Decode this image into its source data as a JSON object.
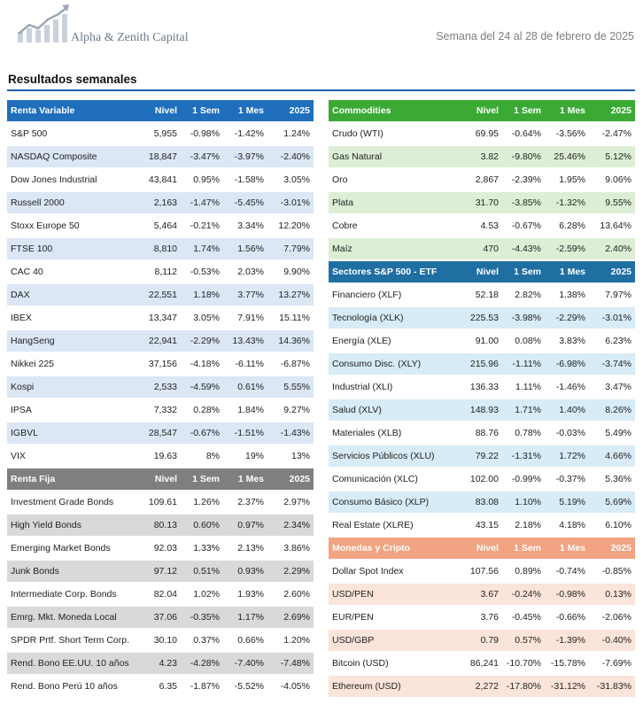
{
  "header": {
    "brand": "Alpha & Zenith Capital",
    "week": "Semana del 24 al 28 de febrero de 2025"
  },
  "section_title": "Resultados semanales",
  "colors": {
    "blue": "#1f6fbd",
    "blue_alt": "#dbe7f5",
    "gray": "#7f7f7f",
    "gray_alt": "#d9d9d9",
    "green": "#3aaa35",
    "green_alt": "#dcefd5",
    "teal": "#1f6fa3",
    "teal_alt": "#d7ecf6",
    "salmon": "#f2a382",
    "salmon_alt": "#fbe4da"
  },
  "left": [
    {
      "key": "renta_variable",
      "header": [
        "Renta Variable",
        "Nivel",
        "1 Sem",
        "1 Mes",
        "2025"
      ],
      "color": "blue",
      "rows": [
        [
          "S&P 500",
          "5,955",
          "-0.98%",
          "-1.42%",
          "1.24%"
        ],
        [
          "NASDAQ Composite",
          "18,847",
          "-3.47%",
          "-3.97%",
          "-2.40%"
        ],
        [
          "Dow Jones Industrial",
          "43,841",
          "0.95%",
          "-1.58%",
          "3.05%"
        ],
        [
          "Russell 2000",
          "2,163",
          "-1.47%",
          "-5.45%",
          "-3.01%"
        ],
        [
          "Stoxx Europe 50",
          "5,464",
          "-0.21%",
          "3.34%",
          "12.20%"
        ],
        [
          "FTSE 100",
          "8,810",
          "1.74%",
          "1.56%",
          "7.79%"
        ],
        [
          "CAC 40",
          "8,112",
          "-0.53%",
          "2.03%",
          "9.90%"
        ],
        [
          "DAX",
          "22,551",
          "1.18%",
          "3.77%",
          "13.27%"
        ],
        [
          "IBEX",
          "13,347",
          "3.05%",
          "7.91%",
          "15.11%"
        ],
        [
          "HangSeng",
          "22,941",
          "-2.29%",
          "13.43%",
          "14.36%"
        ],
        [
          "Nikkei 225",
          "37,156",
          "-4.18%",
          "-6.11%",
          "-6.87%"
        ],
        [
          "Kospi",
          "2,533",
          "-4.59%",
          "0.61%",
          "5.55%"
        ],
        [
          "IPSA",
          "7,332",
          "0.28%",
          "1.84%",
          "9.27%"
        ],
        [
          "IGBVL",
          "28,547",
          "-0.67%",
          "-1.51%",
          "-1.43%"
        ],
        [
          "VIX",
          "19.63",
          "8%",
          "19%",
          "13%"
        ]
      ]
    },
    {
      "key": "renta_fija",
      "header": [
        "Renta Fija",
        "Nivel",
        "1 Sem",
        "1 Mes",
        "2025"
      ],
      "color": "gray",
      "rows": [
        [
          "Investment Grade Bonds",
          "109.61",
          "1.26%",
          "2.37%",
          "2.97%"
        ],
        [
          "High Yield Bonds",
          "80.13",
          "0.60%",
          "0.97%",
          "2.34%"
        ],
        [
          "Emerging Market Bonds",
          "92.03",
          "1.33%",
          "2.13%",
          "3.86%"
        ],
        [
          "Junk Bonds",
          "97.12",
          "0.51%",
          "0.93%",
          "2.29%"
        ],
        [
          "Intermediate Corp. Bonds",
          "82.04",
          "1.02%",
          "1.93%",
          "2.60%"
        ],
        [
          "Emrg. Mkt. Moneda Local",
          "37.06",
          "-0.35%",
          "1.17%",
          "2.69%"
        ],
        [
          "SPDR Prtf. Short Term Corp.",
          "30.10",
          "0.37%",
          "0.66%",
          "1.20%"
        ],
        [
          "Rend. Bono EE.UU. 10 años",
          "4.23",
          "-4.28%",
          "-7.40%",
          "-7.48%"
        ],
        [
          "Rend. Bono Perú 10 años",
          "6.35",
          "-1.87%",
          "-5.52%",
          "-4.05%"
        ]
      ]
    }
  ],
  "right": [
    {
      "key": "commodities",
      "header": [
        "Commodities",
        "Nivel",
        "1 Sem",
        "1 Mes",
        "2025"
      ],
      "color": "green",
      "rows": [
        [
          "Crudo (WTI)",
          "69.95",
          "-0.64%",
          "-3.56%",
          "-2.47%"
        ],
        [
          "Gas Natural",
          "3.82",
          "-9.80%",
          "25.46%",
          "5.12%"
        ],
        [
          "Oro",
          "2,867",
          "-2.39%",
          "1.95%",
          "9.06%"
        ],
        [
          "Plata",
          "31.70",
          "-3.85%",
          "-1.32%",
          "9.55%"
        ],
        [
          "Cobre",
          "4.53",
          "-0.67%",
          "6.28%",
          "13.64%"
        ],
        [
          "Maíz",
          "470",
          "-4.43%",
          "-2.59%",
          "2.40%"
        ]
      ]
    },
    {
      "key": "sectores",
      "header": [
        "Sectores S&P 500 - ETF",
        "Nivel",
        "1 Sem",
        "1 Mes",
        "2025"
      ],
      "color": "teal",
      "rows": [
        [
          "Financiero (XLF)",
          "52.18",
          "2.82%",
          "1.38%",
          "7.97%"
        ],
        [
          "Tecnología (XLK)",
          "225.53",
          "-3.98%",
          "-2.29%",
          "-3.01%"
        ],
        [
          "Energía (XLE)",
          "91.00",
          "0.08%",
          "3.83%",
          "6.23%"
        ],
        [
          "Consumo Disc. (XLY)",
          "215.96",
          "-1.11%",
          "-6.98%",
          "-3.74%"
        ],
        [
          "Industrial (XLI)",
          "136.33",
          "1.11%",
          "-1.46%",
          "3.47%"
        ],
        [
          "Salud (XLV)",
          "148.93",
          "1.71%",
          "1.40%",
          "8.26%"
        ],
        [
          "Materiales (XLB)",
          "88.76",
          "0.78%",
          "-0.03%",
          "5.49%"
        ],
        [
          "Servicios Públicos (XLU)",
          "79.22",
          "-1.31%",
          "1.72%",
          "4.66%"
        ],
        [
          "Comunicación (XLC)",
          "102.00",
          "-0.99%",
          "-0.37%",
          "5.36%"
        ],
        [
          "Consumo Básico (XLP)",
          "83.08",
          "1.10%",
          "5.19%",
          "5.69%"
        ],
        [
          "Real Estate (XLRE)",
          "43.15",
          "2.18%",
          "4.18%",
          "6.10%"
        ]
      ]
    },
    {
      "key": "monedas",
      "header": [
        "Monedas y Cripto",
        "Nivel",
        "1 Sem",
        "1 Mes",
        "2025"
      ],
      "color": "salmon",
      "rows": [
        [
          "Dollar Spot Index",
          "107.56",
          "0.89%",
          "-0.74%",
          "-0.85%"
        ],
        [
          "USD/PEN",
          "3.67",
          "-0.24%",
          "-0.98%",
          "0.13%"
        ],
        [
          "EUR/PEN",
          "3.76",
          "-0.45%",
          "-0.66%",
          "-2.06%"
        ],
        [
          "USD/GBP",
          "0.79",
          "0.57%",
          "-1.39%",
          "-0.40%"
        ],
        [
          "Bitcoin (USD)",
          "86,241",
          "-10.70%",
          "-15.78%",
          "-7.69%"
        ],
        [
          "Ethereum (USD)",
          "2,272",
          "-17.80%",
          "-31.12%",
          "-31.83%"
        ]
      ]
    }
  ]
}
